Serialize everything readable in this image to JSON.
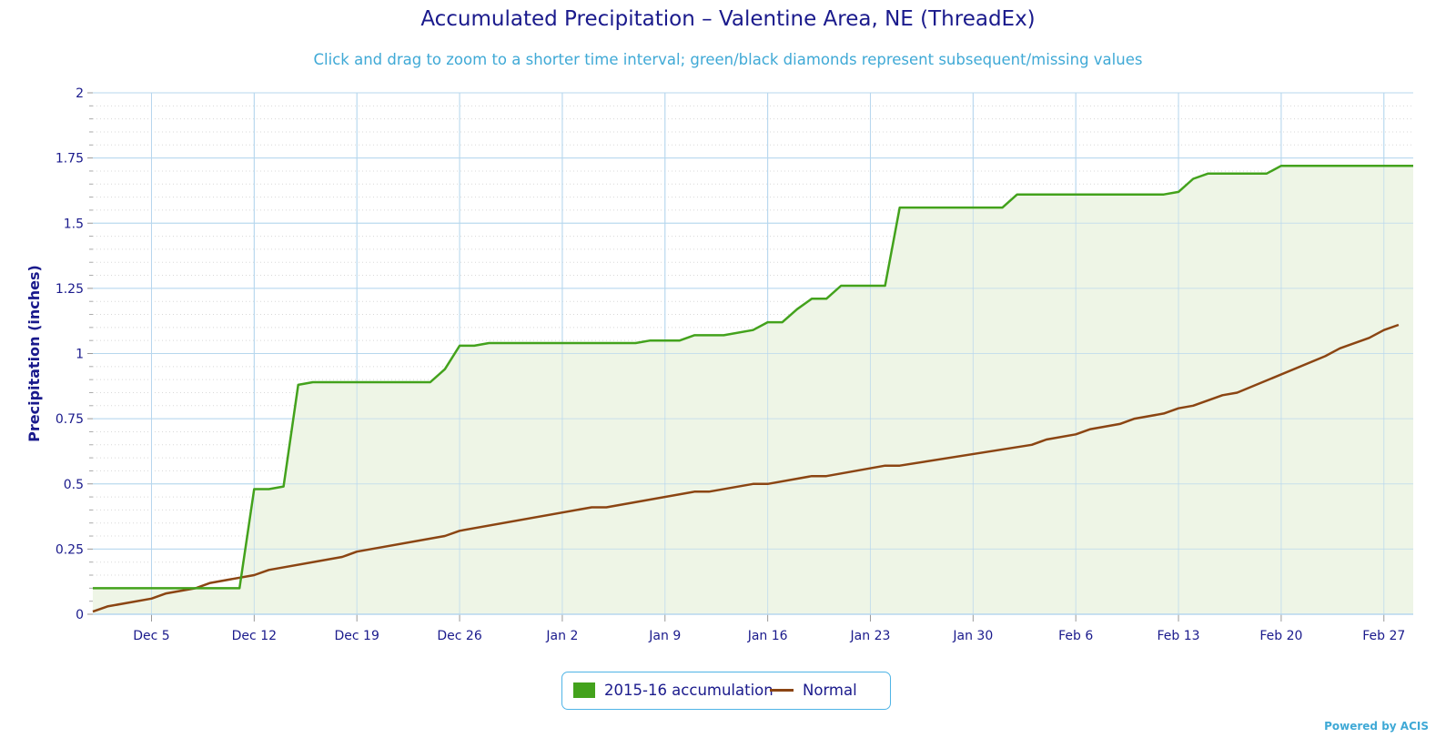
{
  "title": "Accumulated Precipitation – Valentine Area, NE (ThreadEx)",
  "subtitle": "Click and drag to zoom to a shorter time interval; green/black diamonds represent subsequent/missing values",
  "powered_by": "Powered by ACIS",
  "colors": {
    "accumulation": "#43a21c",
    "normal": "#8b4513",
    "fill": "#eef5e6",
    "grid": "#b7d7ee",
    "text": "#1a1a8c"
  },
  "chart_data": {
    "type": "line",
    "title": "Accumulated Precipitation – Valentine Area, NE (ThreadEx)",
    "ylabel": "Precipitation (inches)",
    "xlabel": "",
    "ylim": [
      0,
      2
    ],
    "yticks": [
      "0",
      "0.25",
      "0.5",
      "0.75",
      "1",
      "1.25",
      "1.5",
      "1.75",
      "2"
    ],
    "xlim": [
      "2015-12-01",
      "2016-02-29"
    ],
    "xticks": [
      {
        "date": "2015-12-05",
        "label": "Dec 5"
      },
      {
        "date": "2015-12-12",
        "label": "Dec 12"
      },
      {
        "date": "2015-12-19",
        "label": "Dec 19"
      },
      {
        "date": "2015-12-26",
        "label": "Dec 26"
      },
      {
        "date": "2016-01-02",
        "label": "Jan 2"
      },
      {
        "date": "2016-01-09",
        "label": "Jan 9"
      },
      {
        "date": "2016-01-16",
        "label": "Jan 16"
      },
      {
        "date": "2016-01-23",
        "label": "Jan 23"
      },
      {
        "date": "2016-01-30",
        "label": "Jan 30"
      },
      {
        "date": "2016-02-06",
        "label": "Feb 6"
      },
      {
        "date": "2016-02-13",
        "label": "Feb 13"
      },
      {
        "date": "2016-02-20",
        "label": "Feb 20"
      },
      {
        "date": "2016-02-27",
        "label": "Feb 27"
      }
    ],
    "grid": true,
    "legend_position": "bottom-center",
    "series": [
      {
        "name": "2015-16 accumulation",
        "style": "area",
        "points": [
          [
            "2015-12-01",
            0.1
          ],
          [
            "2015-12-11",
            0.1
          ],
          [
            "2015-12-12",
            0.48
          ],
          [
            "2015-12-13",
            0.48
          ],
          [
            "2015-12-14",
            0.49
          ],
          [
            "2015-12-15",
            0.88
          ],
          [
            "2015-12-16",
            0.89
          ],
          [
            "2015-12-24",
            0.89
          ],
          [
            "2015-12-25",
            0.94
          ],
          [
            "2015-12-26",
            1.03
          ],
          [
            "2015-12-27",
            1.03
          ],
          [
            "2015-12-28",
            1.04
          ],
          [
            "2016-01-07",
            1.04
          ],
          [
            "2016-01-08",
            1.05
          ],
          [
            "2016-01-10",
            1.05
          ],
          [
            "2016-01-11",
            1.07
          ],
          [
            "2016-01-13",
            1.07
          ],
          [
            "2016-01-15",
            1.09
          ],
          [
            "2016-01-16",
            1.12
          ],
          [
            "2016-01-17",
            1.12
          ],
          [
            "2016-01-18",
            1.17
          ],
          [
            "2016-01-19",
            1.21
          ],
          [
            "2016-01-20",
            1.21
          ],
          [
            "2016-01-21",
            1.26
          ],
          [
            "2016-01-24",
            1.26
          ],
          [
            "2016-01-25",
            1.56
          ],
          [
            "2016-02-01",
            1.56
          ],
          [
            "2016-02-02",
            1.61
          ],
          [
            "2016-02-12",
            1.61
          ],
          [
            "2016-02-13",
            1.62
          ],
          [
            "2016-02-14",
            1.67
          ],
          [
            "2016-02-15",
            1.69
          ],
          [
            "2016-02-19",
            1.69
          ],
          [
            "2016-02-20",
            1.72
          ],
          [
            "2016-02-29",
            1.72
          ]
        ]
      },
      {
        "name": "Normal",
        "style": "line",
        "points": [
          [
            "2015-12-01",
            0.01
          ],
          [
            "2015-12-02",
            0.03
          ],
          [
            "2015-12-05",
            0.06
          ],
          [
            "2015-12-06",
            0.08
          ],
          [
            "2015-12-08",
            0.1
          ],
          [
            "2015-12-09",
            0.12
          ],
          [
            "2015-12-12",
            0.15
          ],
          [
            "2015-12-13",
            0.17
          ],
          [
            "2015-12-18",
            0.22
          ],
          [
            "2015-12-19",
            0.24
          ],
          [
            "2015-12-25",
            0.3
          ],
          [
            "2015-12-26",
            0.32
          ],
          [
            "2016-01-04",
            0.41
          ],
          [
            "2016-01-05",
            0.41
          ],
          [
            "2016-01-11",
            0.47
          ],
          [
            "2016-01-12",
            0.47
          ],
          [
            "2016-01-15",
            0.5
          ],
          [
            "2016-01-16",
            0.5
          ],
          [
            "2016-01-19",
            0.53
          ],
          [
            "2016-01-20",
            0.53
          ],
          [
            "2016-01-24",
            0.57
          ],
          [
            "2016-01-25",
            0.57
          ],
          [
            "2016-02-03",
            0.65
          ],
          [
            "2016-02-04",
            0.67
          ],
          [
            "2016-02-06",
            0.69
          ],
          [
            "2016-02-07",
            0.71
          ],
          [
            "2016-02-09",
            0.73
          ],
          [
            "2016-02-10",
            0.75
          ],
          [
            "2016-02-12",
            0.77
          ],
          [
            "2016-02-13",
            0.79
          ],
          [
            "2016-02-14",
            0.8
          ],
          [
            "2016-02-16",
            0.84
          ],
          [
            "2016-02-17",
            0.85
          ],
          [
            "2016-02-23",
            0.99
          ],
          [
            "2016-02-24",
            1.02
          ],
          [
            "2016-02-26",
            1.06
          ],
          [
            "2016-02-27",
            1.09
          ],
          [
            "2016-02-28",
            1.11
          ]
        ]
      }
    ]
  }
}
